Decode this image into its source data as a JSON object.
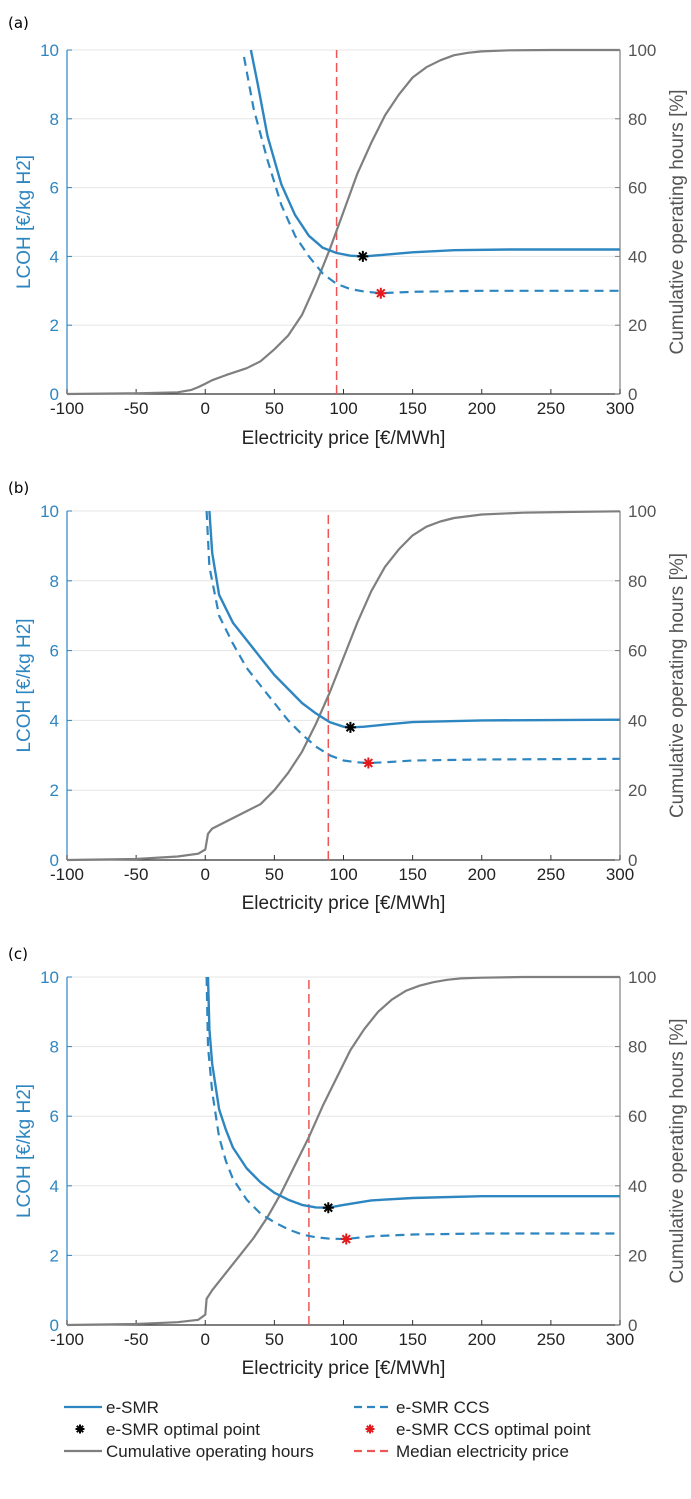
{
  "chart_data": [
    {
      "type": "line",
      "panel": "(a)",
      "xlabel": "Electricity price [€/MWh]",
      "ylabel_left": "LCOH [€/kg H2]",
      "ylabel_right": "Cumulative operating hours [%]",
      "xlim": [
        -100,
        300
      ],
      "ylim_left": [
        0,
        10
      ],
      "ylim_right": [
        0,
        100
      ],
      "xticks": [
        -100,
        -50,
        0,
        50,
        100,
        150,
        200,
        250,
        300
      ],
      "yticks_left": [
        0,
        2,
        4,
        6,
        8,
        10
      ],
      "yticks_right": [
        0,
        20,
        40,
        60,
        80,
        100
      ],
      "grid": "horizontal",
      "series": [
        {
          "name": "e-SMR",
          "axis": "left",
          "style": "solid",
          "color": "#2e86c1",
          "x": [
            33,
            38,
            45,
            55,
            65,
            75,
            85,
            95,
            105,
            115,
            130,
            150,
            180,
            220,
            300
          ],
          "y": [
            10,
            9.0,
            7.5,
            6.1,
            5.2,
            4.6,
            4.25,
            4.1,
            4.02,
            4.0,
            4.05,
            4.12,
            4.18,
            4.2,
            4.2
          ]
        },
        {
          "name": "e-SMR CCS",
          "axis": "left",
          "style": "dashed",
          "color": "#2e86c1",
          "x": [
            28,
            35,
            45,
            55,
            65,
            75,
            85,
            95,
            105,
            115,
            127,
            150,
            200,
            300
          ],
          "y": [
            9.8,
            8.3,
            6.8,
            5.5,
            4.6,
            4.0,
            3.5,
            3.2,
            3.05,
            2.98,
            2.93,
            2.97,
            3.0,
            3.0
          ]
        },
        {
          "name": "Cumulative operating hours",
          "axis": "right",
          "style": "solid",
          "color": "#7f7f7f",
          "x": [
            -100,
            -50,
            -20,
            -10,
            -5,
            0,
            5,
            15,
            30,
            40,
            50,
            60,
            70,
            80,
            90,
            100,
            110,
            120,
            130,
            140,
            150,
            160,
            170,
            180,
            190,
            200,
            220,
            250,
            300
          ],
          "y": [
            0,
            0.2,
            0.5,
            1.2,
            2.0,
            3.0,
            4.0,
            5.5,
            7.5,
            9.5,
            13,
            17,
            23,
            32,
            42,
            53,
            64,
            73,
            81,
            87,
            92,
            95,
            97,
            98.5,
            99.2,
            99.6,
            99.9,
            100,
            100
          ]
        },
        {
          "name": "Median electricity price",
          "axis": "left",
          "style": "dashed-vertical",
          "color": "#ee5555",
          "x": [
            95,
            95
          ],
          "y": [
            0,
            10
          ]
        },
        {
          "name": "e-SMR optimal point",
          "axis": "left",
          "marker": "star",
          "color": "#000000",
          "x": [
            114
          ],
          "y": [
            4.0
          ]
        },
        {
          "name": "e-SMR CCS optimal point",
          "axis": "left",
          "marker": "star",
          "color": "#e31a1c",
          "x": [
            127
          ],
          "y": [
            2.93
          ]
        }
      ]
    },
    {
      "type": "line",
      "panel": "(b)",
      "xlabel": "Electricity price [€/MWh]",
      "ylabel_left": "LCOH [€/kg H2]",
      "ylabel_right": "Cumulative operating hours [%]",
      "xlim": [
        -100,
        300
      ],
      "ylim_left": [
        0,
        10
      ],
      "ylim_right": [
        0,
        100
      ],
      "xticks": [
        -100,
        -50,
        0,
        50,
        100,
        150,
        200,
        250,
        300
      ],
      "yticks_left": [
        0,
        2,
        4,
        6,
        8,
        10
      ],
      "yticks_right": [
        0,
        20,
        40,
        60,
        80,
        100
      ],
      "grid": "horizontal",
      "series": [
        {
          "name": "e-SMR",
          "axis": "left",
          "style": "solid",
          "color": "#2e86c1",
          "x": [
            3,
            5,
            10,
            20,
            30,
            40,
            50,
            60,
            70,
            80,
            90,
            100,
            105,
            115,
            130,
            150,
            200,
            300
          ],
          "y": [
            10,
            8.8,
            7.6,
            6.8,
            6.3,
            5.8,
            5.3,
            4.9,
            4.5,
            4.2,
            3.95,
            3.82,
            3.8,
            3.82,
            3.88,
            3.95,
            4.0,
            4.02
          ]
        },
        {
          "name": "e-SMR CCS",
          "axis": "left",
          "style": "dashed",
          "color": "#2e86c1",
          "x": [
            1,
            3,
            10,
            20,
            30,
            40,
            50,
            60,
            70,
            80,
            90,
            100,
            110,
            118,
            130,
            150,
            200,
            300
          ],
          "y": [
            10,
            8.4,
            7.0,
            6.2,
            5.5,
            5.0,
            4.5,
            4.0,
            3.6,
            3.25,
            3.0,
            2.85,
            2.8,
            2.78,
            2.8,
            2.85,
            2.88,
            2.9
          ]
        },
        {
          "name": "Cumulative operating hours",
          "axis": "right",
          "style": "solid",
          "color": "#7f7f7f",
          "x": [
            -100,
            -50,
            -20,
            -5,
            0,
            2,
            5,
            15,
            30,
            40,
            50,
            60,
            70,
            80,
            90,
            100,
            110,
            120,
            130,
            140,
            150,
            160,
            170,
            180,
            200,
            230,
            260,
            300
          ],
          "y": [
            0,
            0.3,
            1.0,
            1.8,
            3.0,
            7.5,
            9.0,
            11,
            14,
            16,
            20,
            25,
            31,
            39,
            48,
            58,
            68,
            77,
            84,
            89,
            93,
            95.5,
            97,
            98,
            99,
            99.5,
            99.7,
            99.9
          ]
        },
        {
          "name": "Median electricity price",
          "axis": "left",
          "style": "dashed-vertical",
          "color": "#ee5555",
          "x": [
            89,
            89
          ],
          "y": [
            0,
            10
          ]
        },
        {
          "name": "e-SMR optimal point",
          "axis": "left",
          "marker": "star",
          "color": "#000000",
          "x": [
            105
          ],
          "y": [
            3.8
          ]
        },
        {
          "name": "e-SMR CCS optimal point",
          "axis": "left",
          "marker": "star",
          "color": "#e31a1c",
          "x": [
            118
          ],
          "y": [
            2.78
          ]
        }
      ]
    },
    {
      "type": "line",
      "panel": "(c)",
      "xlabel": "Electricity price [€/MWh]",
      "ylabel_left": "LCOH [€/kg H2]",
      "ylabel_right": "Cumulative operating hours [%]",
      "xlim": [
        -100,
        300
      ],
      "ylim_left": [
        0,
        10
      ],
      "ylim_right": [
        0,
        100
      ],
      "xticks": [
        -100,
        -50,
        0,
        50,
        100,
        150,
        200,
        250,
        300
      ],
      "yticks_left": [
        0,
        2,
        4,
        6,
        8,
        10
      ],
      "yticks_right": [
        0,
        20,
        40,
        60,
        80,
        100
      ],
      "grid": "horizontal",
      "series": [
        {
          "name": "e-SMR",
          "axis": "left",
          "style": "solid",
          "color": "#2e86c1",
          "x": [
            2,
            3,
            5,
            10,
            15,
            20,
            30,
            40,
            50,
            60,
            70,
            80,
            89,
            100,
            120,
            150,
            200,
            300
          ],
          "y": [
            10,
            8.5,
            7.5,
            6.2,
            5.6,
            5.1,
            4.5,
            4.1,
            3.8,
            3.6,
            3.45,
            3.38,
            3.37,
            3.45,
            3.58,
            3.65,
            3.7,
            3.7
          ]
        },
        {
          "name": "e-SMR CCS",
          "axis": "left",
          "style": "dashed",
          "color": "#2e86c1",
          "x": [
            1,
            2,
            5,
            10,
            15,
            20,
            30,
            40,
            50,
            60,
            70,
            80,
            90,
            102,
            120,
            150,
            200,
            300
          ],
          "y": [
            10,
            8.0,
            6.7,
            5.4,
            4.7,
            4.2,
            3.6,
            3.2,
            2.95,
            2.75,
            2.6,
            2.52,
            2.48,
            2.47,
            2.55,
            2.6,
            2.63,
            2.63
          ]
        },
        {
          "name": "Cumulative operating hours",
          "axis": "right",
          "style": "solid",
          "color": "#7f7f7f",
          "x": [
            -100,
            -50,
            -20,
            -5,
            0,
            1,
            5,
            15,
            25,
            35,
            45,
            55,
            65,
            75,
            85,
            95,
            105,
            115,
            125,
            135,
            145,
            155,
            165,
            175,
            185,
            200,
            230,
            300
          ],
          "y": [
            0,
            0.3,
            0.8,
            1.5,
            3.0,
            7.5,
            10,
            15,
            20,
            25,
            31,
            38,
            46,
            54,
            63,
            71,
            79,
            85,
            90,
            93.5,
            96,
            97.5,
            98.5,
            99.2,
            99.6,
            99.8,
            100,
            100
          ]
        },
        {
          "name": "Median electricity price",
          "axis": "left",
          "style": "dashed-vertical",
          "color": "#ee5555",
          "x": [
            75,
            75
          ],
          "y": [
            0,
            10
          ]
        },
        {
          "name": "e-SMR optimal point",
          "axis": "left",
          "marker": "star",
          "color": "#000000",
          "x": [
            89
          ],
          "y": [
            3.37
          ]
        },
        {
          "name": "e-SMR CCS optimal point",
          "axis": "left",
          "marker": "star",
          "color": "#e31a1c",
          "x": [
            102
          ],
          "y": [
            2.47
          ]
        }
      ]
    }
  ],
  "legend": {
    "placement": "bottom",
    "items": [
      {
        "label": "e-SMR",
        "kind": "line-solid",
        "color": "#2e86c1"
      },
      {
        "label": "e-SMR CCS",
        "kind": "line-dashed",
        "color": "#2e86c1"
      },
      {
        "label": "e-SMR optimal point",
        "kind": "star",
        "color": "#000000"
      },
      {
        "label": "e-SMR CCS optimal point",
        "kind": "star",
        "color": "#e31a1c"
      },
      {
        "label": "Cumulative operating hours",
        "kind": "line-solid",
        "color": "#7f7f7f"
      },
      {
        "label": "Median electricity price",
        "kind": "line-dashed",
        "color": "#ee5555"
      }
    ]
  }
}
